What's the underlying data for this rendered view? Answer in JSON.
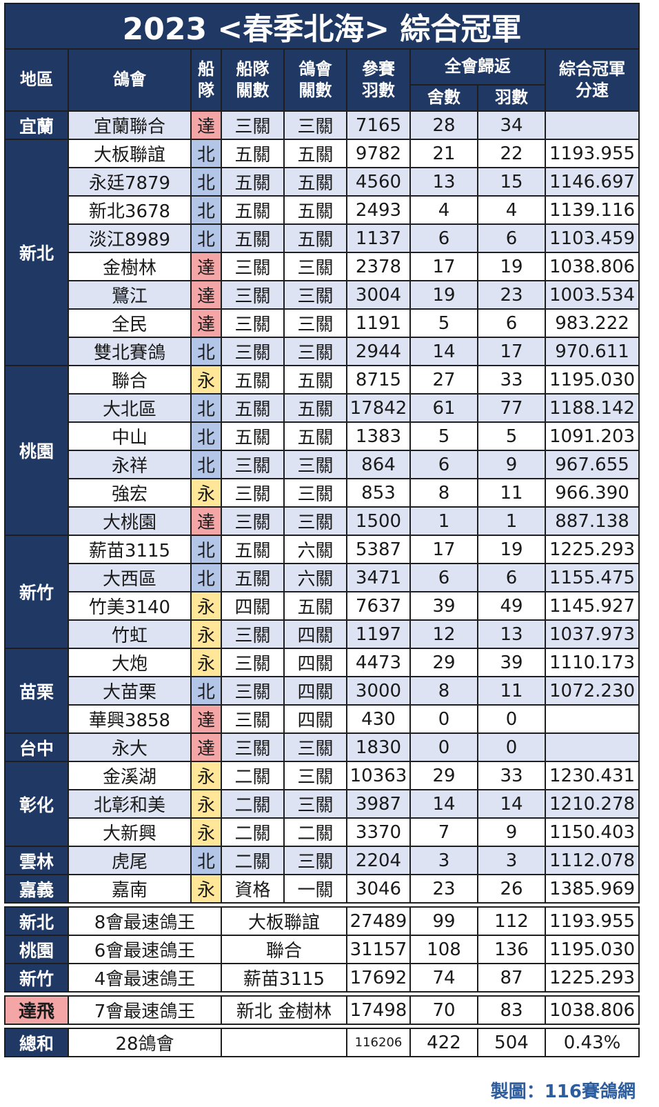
{
  "title": "2023 <春季北海> 綜合冠軍",
  "headers": {
    "region": "地區",
    "club": "鴿會",
    "fleet": "船隊",
    "fleet_races": "船隊關數",
    "club_races": "鴿會關數",
    "entries": "參賽羽數",
    "returns": "全會歸返",
    "lofts": "舍數",
    "birds": "羽數",
    "speed": "綜合冠軍分速"
  },
  "groups": [
    {
      "region": "宜蘭",
      "rows": [
        {
          "club": "宜蘭聯合",
          "fleet": "達",
          "fr": "三關",
          "cr": "三關",
          "entries": "7165",
          "lofts": "28",
          "birds": "34",
          "speed": ""
        }
      ]
    },
    {
      "region": "新北",
      "rows": [
        {
          "club": "大板聯誼",
          "fleet": "北",
          "fr": "五關",
          "cr": "五關",
          "entries": "9782",
          "lofts": "21",
          "birds": "22",
          "speed": "1193.955"
        },
        {
          "club": "永廷7879",
          "fleet": "北",
          "fr": "五關",
          "cr": "五關",
          "entries": "4560",
          "lofts": "13",
          "birds": "15",
          "speed": "1146.697"
        },
        {
          "club": "新北3678",
          "fleet": "北",
          "fr": "五關",
          "cr": "五關",
          "entries": "2493",
          "lofts": "4",
          "birds": "4",
          "speed": "1139.116"
        },
        {
          "club": "淡江8989",
          "fleet": "北",
          "fr": "五關",
          "cr": "五關",
          "entries": "1137",
          "lofts": "6",
          "birds": "6",
          "speed": "1103.459"
        },
        {
          "club": "金樹林",
          "fleet": "達",
          "fr": "三關",
          "cr": "三關",
          "entries": "2378",
          "lofts": "17",
          "birds": "19",
          "speed": "1038.806"
        },
        {
          "club": "鷺江",
          "fleet": "達",
          "fr": "三關",
          "cr": "三關",
          "entries": "3004",
          "lofts": "19",
          "birds": "23",
          "speed": "1003.534"
        },
        {
          "club": "全民",
          "fleet": "達",
          "fr": "三關",
          "cr": "三關",
          "entries": "1191",
          "lofts": "5",
          "birds": "6",
          "speed": "983.222"
        },
        {
          "club": "雙北賽鴿",
          "fleet": "北",
          "fr": "三關",
          "cr": "三關",
          "entries": "2944",
          "lofts": "14",
          "birds": "17",
          "speed": "970.611"
        }
      ]
    },
    {
      "region": "桃園",
      "rows": [
        {
          "club": "聯合",
          "fleet": "永",
          "fr": "五關",
          "cr": "五關",
          "entries": "8715",
          "lofts": "27",
          "birds": "33",
          "speed": "1195.030"
        },
        {
          "club": "大北區",
          "fleet": "北",
          "fr": "五關",
          "cr": "五關",
          "entries": "17842",
          "lofts": "61",
          "birds": "77",
          "speed": "1188.142"
        },
        {
          "club": "中山",
          "fleet": "北",
          "fr": "五關",
          "cr": "五關",
          "entries": "1383",
          "lofts": "5",
          "birds": "5",
          "speed": "1091.203"
        },
        {
          "club": "永祥",
          "fleet": "北",
          "fr": "三關",
          "cr": "三關",
          "entries": "864",
          "lofts": "6",
          "birds": "9",
          "speed": "967.655"
        },
        {
          "club": "強宏",
          "fleet": "永",
          "fr": "三關",
          "cr": "三關",
          "entries": "853",
          "lofts": "8",
          "birds": "11",
          "speed": "966.390"
        },
        {
          "club": "大桃園",
          "fleet": "達",
          "fr": "三關",
          "cr": "三關",
          "entries": "1500",
          "lofts": "1",
          "birds": "1",
          "speed": "887.138"
        }
      ]
    },
    {
      "region": "新竹",
      "rows": [
        {
          "club": "薪苗3115",
          "fleet": "北",
          "fr": "五關",
          "cr": "六關",
          "entries": "5387",
          "lofts": "17",
          "birds": "19",
          "speed": "1225.293"
        },
        {
          "club": "大西區",
          "fleet": "北",
          "fr": "五關",
          "cr": "六關",
          "entries": "3471",
          "lofts": "6",
          "birds": "6",
          "speed": "1155.475"
        },
        {
          "club": "竹美3140",
          "fleet": "永",
          "fr": "四關",
          "cr": "五關",
          "entries": "7637",
          "lofts": "39",
          "birds": "49",
          "speed": "1145.927"
        },
        {
          "club": "竹虹",
          "fleet": "永",
          "fr": "三關",
          "cr": "四關",
          "entries": "1197",
          "lofts": "12",
          "birds": "13",
          "speed": "1037.973"
        }
      ]
    },
    {
      "region": "苗栗",
      "rows": [
        {
          "club": "大炮",
          "fleet": "永",
          "fr": "三關",
          "cr": "四關",
          "entries": "4473",
          "lofts": "29",
          "birds": "39",
          "speed": "1110.173"
        },
        {
          "club": "大苗栗",
          "fleet": "北",
          "fr": "三關",
          "cr": "四關",
          "entries": "3000",
          "lofts": "8",
          "birds": "11",
          "speed": "1072.230"
        },
        {
          "club": "華興3858",
          "fleet": "達",
          "fr": "三關",
          "cr": "四關",
          "entries": "430",
          "lofts": "0",
          "birds": "0",
          "speed": ""
        }
      ]
    },
    {
      "region": "台中",
      "rows": [
        {
          "club": "永大",
          "fleet": "達",
          "fr": "三關",
          "cr": "三關",
          "entries": "1830",
          "lofts": "0",
          "birds": "0",
          "speed": ""
        }
      ]
    },
    {
      "region": "彰化",
      "rows": [
        {
          "club": "金溪湖",
          "fleet": "永",
          "fr": "二關",
          "cr": "三關",
          "entries": "10363",
          "lofts": "29",
          "birds": "33",
          "speed": "1230.431"
        },
        {
          "club": "北彰和美",
          "fleet": "永",
          "fr": "二關",
          "cr": "三關",
          "entries": "3987",
          "lofts": "14",
          "birds": "14",
          "speed": "1210.278"
        },
        {
          "club": "大新興",
          "fleet": "永",
          "fr": "二關",
          "cr": "二關",
          "entries": "3370",
          "lofts": "7",
          "birds": "9",
          "speed": "1150.403"
        }
      ]
    },
    {
      "region": "雲林",
      "rows": [
        {
          "club": "虎尾",
          "fleet": "北",
          "fr": "二關",
          "cr": "三關",
          "entries": "2204",
          "lofts": "3",
          "birds": "3",
          "speed": "1112.078"
        }
      ]
    },
    {
      "region": "嘉義",
      "rows": [
        {
          "club": "嘉南",
          "fleet": "永",
          "fr": "資格",
          "cr": "一關",
          "entries": "3046",
          "lofts": "23",
          "birds": "26",
          "speed": "1385.969"
        }
      ]
    }
  ],
  "summary": [
    {
      "region": "新北",
      "label": "8會最速鴿王",
      "club": "大板聯誼",
      "entries": "27489",
      "lofts": "99",
      "birds": "112",
      "speed": "1193.955"
    },
    {
      "region": "桃園",
      "label": "6會最速鴿王",
      "club": "聯合",
      "entries": "31157",
      "lofts": "108",
      "birds": "136",
      "speed": "1195.030"
    },
    {
      "region": "新竹",
      "label": "4會最速鴿王",
      "club": "薪苗3115",
      "entries": "17692",
      "lofts": "74",
      "birds": "87",
      "speed": "1225.293"
    }
  ],
  "dafei": {
    "region": "達飛",
    "label": "7會最速鴿王",
    "club": "新北 金樹林",
    "entries": "17498",
    "lofts": "70",
    "birds": "83",
    "speed": "1038.806"
  },
  "total": {
    "region": "總和",
    "label": "28鴿會",
    "club": "",
    "entries": "116206",
    "lofts": "422",
    "birds": "504",
    "speed": "0.43%"
  },
  "credit": "製圖：116賽鴿網",
  "colors": {
    "header": "#1f3864",
    "alt_row": "#dde3f2",
    "fleet_北": "#b4c6e7",
    "fleet_達": "#f4a5a5",
    "fleet_永": "#ffe699"
  }
}
